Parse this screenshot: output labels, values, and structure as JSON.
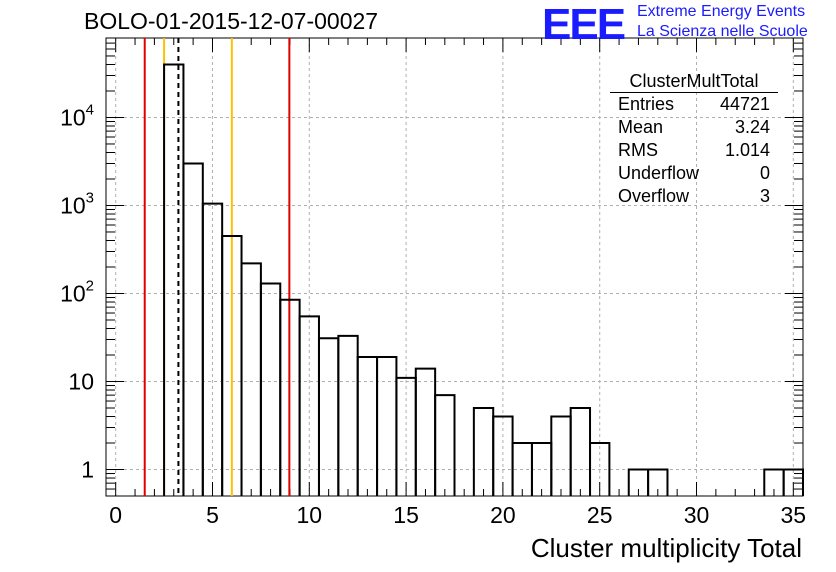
{
  "header": {
    "title": "BOLO-01-2015-12-07-00027",
    "logo_mark": "EEE",
    "logo_line1": "Extreme Energy Events",
    "logo_line2": "La Scienza nelle Scuole"
  },
  "stats_box": {
    "name": "ClusterMultTotal",
    "rows": [
      {
        "label": "Entries",
        "value": "44721"
      },
      {
        "label": "Mean",
        "value": "3.24"
      },
      {
        "label": "RMS",
        "value": "1.014"
      },
      {
        "label": "Underflow",
        "value": "0"
      },
      {
        "label": "Overflow",
        "value": "3"
      }
    ]
  },
  "colors": {
    "red_line": "#e00000",
    "yellow_line": "#ffc000",
    "histogram": "#000000",
    "grid": "#b0b0b0",
    "logo": "#1b1bff"
  },
  "chart_data": {
    "type": "bar",
    "title": "BOLO-01-2015-12-07-00027",
    "xlabel": "Cluster multiplicity Total",
    "ylabel": "",
    "log_y": true,
    "grid": true,
    "xlim": [
      -0.5,
      35.5
    ],
    "ylim": [
      0.5,
      80000
    ],
    "bin_width": 1,
    "bins": [
      {
        "x": 3,
        "y": 40000
      },
      {
        "x": 4,
        "y": 3000
      },
      {
        "x": 5,
        "y": 1050
      },
      {
        "x": 6,
        "y": 450
      },
      {
        "x": 7,
        "y": 220
      },
      {
        "x": 8,
        "y": 130
      },
      {
        "x": 9,
        "y": 85
      },
      {
        "x": 10,
        "y": 55
      },
      {
        "x": 11,
        "y": 31
      },
      {
        "x": 12,
        "y": 33
      },
      {
        "x": 13,
        "y": 19
      },
      {
        "x": 14,
        "y": 19
      },
      {
        "x": 15,
        "y": 11
      },
      {
        "x": 16,
        "y": 14
      },
      {
        "x": 17,
        "y": 7
      },
      {
        "x": 19,
        "y": 5
      },
      {
        "x": 20,
        "y": 4
      },
      {
        "x": 21,
        "y": 2
      },
      {
        "x": 22,
        "y": 2
      },
      {
        "x": 23,
        "y": 4
      },
      {
        "x": 24,
        "y": 5
      },
      {
        "x": 25,
        "y": 2
      },
      {
        "x": 27,
        "y": 1
      },
      {
        "x": 28,
        "y": 1
      },
      {
        "x": 34,
        "y": 1
      },
      {
        "x": 35,
        "y": 1
      }
    ],
    "xticks": [
      0,
      5,
      10,
      15,
      20,
      25,
      30,
      35
    ],
    "xtick_labels": [
      "0",
      "5",
      "10",
      "15",
      "20",
      "25",
      "30",
      "35"
    ],
    "yticks": [
      1,
      10,
      100,
      1000,
      10000
    ],
    "ytick_labels": [
      "1",
      "10",
      "10^2",
      "10^3",
      "10^4"
    ],
    "markers": [
      {
        "x": 1.5,
        "style": "red"
      },
      {
        "x": 2.5,
        "style": "yellow"
      },
      {
        "x": 3.24,
        "style": "dashed"
      },
      {
        "x": 6.0,
        "style": "yellow"
      },
      {
        "x": 8.97,
        "style": "red"
      }
    ]
  }
}
